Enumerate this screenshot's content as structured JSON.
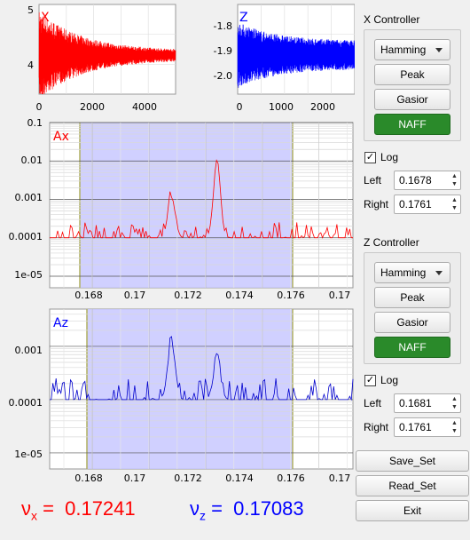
{
  "colors": {
    "x": "#ff0000",
    "z": "#0000ff",
    "window_fill": "#c8c8ff",
    "naff_green": "#2a8a2a"
  },
  "plots": {
    "x_signal": {
      "label": "X",
      "yticks": [
        "5",
        "4"
      ],
      "xticks": [
        "0",
        "2000",
        "4000"
      ]
    },
    "z_signal": {
      "label": "Z",
      "yticks": [
        "-1.8",
        "-1.9",
        "-2.0"
      ],
      "xticks": [
        "0",
        "1000",
        "2000"
      ]
    },
    "ax_spectrum": {
      "label": "Ax",
      "yticks": [
        "0.1",
        "0.01",
        "0.001",
        "0.0001",
        "1e-05"
      ],
      "xticks": [
        "0.168",
        "0.17",
        "0.172",
        "0.174",
        "0.176",
        "0.17"
      ]
    },
    "az_spectrum": {
      "label": "Az",
      "yticks": [
        "0.001",
        "0.0001",
        "1e-05"
      ],
      "xticks": [
        "0.168",
        "0.17",
        "0.172",
        "0.174",
        "0.176",
        "0.17"
      ]
    }
  },
  "chart_data": [
    {
      "type": "line",
      "label": "X",
      "xlim": [
        0,
        5200
      ],
      "ylim": [
        3.6,
        5.1
      ],
      "series": [
        {
          "envelope_center": 4.25,
          "envelope_start": 0.75,
          "envelope_end": 0.08
        }
      ]
    },
    {
      "type": "line",
      "label": "Z",
      "xlim": [
        0,
        2800
      ],
      "ylim": [
        -2.06,
        -1.74
      ],
      "series": [
        {
          "envelope_center": -1.92,
          "envelope_start": 0.12,
          "envelope_end": 0.05
        }
      ]
    },
    {
      "type": "line",
      "label": "Ax",
      "scale": "log",
      "xlim": [
        0.1665,
        0.1772
      ],
      "ylim": [
        5e-06,
        0.1
      ],
      "window": [
        0.1678,
        0.1761
      ],
      "series": [
        {
          "baseline": 0.0001,
          "peaks": [
            {
              "x": 0.1708,
              "y": 0.0015
            },
            {
              "x": 0.1724,
              "y": 0.008
            }
          ]
        }
      ]
    },
    {
      "type": "line",
      "label": "Az",
      "scale": "log",
      "xlim": [
        0.1665,
        0.1772
      ],
      "ylim": [
        5e-06,
        0.005
      ],
      "window": [
        0.1681,
        0.1761
      ],
      "series": [
        {
          "baseline": 0.0001,
          "peaks": [
            {
              "x": 0.1708,
              "y": 0.0015
            },
            {
              "x": 0.1724,
              "y": 0.0007
            }
          ]
        }
      ]
    }
  ],
  "x_controller": {
    "title": "X Controller",
    "window_select": "Hamming",
    "peak_label": "Peak",
    "gasior_label": "Gasior",
    "naff_label": "NAFF",
    "log_label": "Log",
    "log_checked": "✓",
    "left_label": "Left",
    "left_value": "0.1678",
    "right_label": "Right",
    "right_value": "0.1761"
  },
  "z_controller": {
    "title": "Z Controller",
    "window_select": "Hamming",
    "peak_label": "Peak",
    "gasior_label": "Gasior",
    "naff_label": "NAFF",
    "log_label": "Log",
    "log_checked": "✓",
    "left_label": "Left",
    "left_value": "0.1681",
    "right_label": "Right",
    "right_value": "0.1761"
  },
  "actions": {
    "save_label": "Save_Set",
    "read_label": "Read_Set",
    "exit_label": "Exit"
  },
  "tunes": {
    "nux_symbol": "ν",
    "nux_sub": "x",
    "nux_eq": "=",
    "nux_value": "0.17241",
    "nuz_symbol": "ν",
    "nuz_sub": "z",
    "nuz_eq": "=",
    "nuz_value": "0.17083"
  }
}
